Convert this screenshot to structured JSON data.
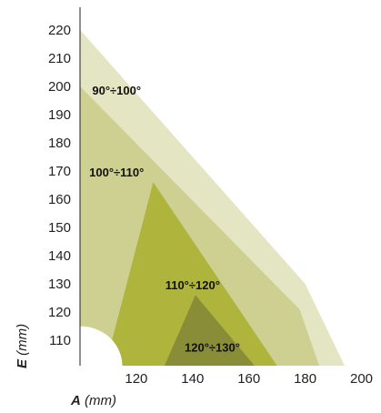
{
  "chart_data": {
    "type": "area",
    "title": "",
    "xlabel": {
      "symbol": "A",
      "unit": " (mm)"
    },
    "ylabel": {
      "symbol": "E",
      "unit": " (mm)"
    },
    "xlim": [
      100,
      205
    ],
    "ylim": [
      101,
      228
    ],
    "x_ticks": [
      120,
      140,
      160,
      180,
      200
    ],
    "y_ticks": [
      110,
      120,
      130,
      140,
      150,
      160,
      170,
      180,
      190,
      200,
      210,
      220
    ],
    "regions": [
      {
        "name": "90°÷100°",
        "color": "#e4e5c3",
        "points": [
          [
            100,
            220
          ],
          [
            180,
            130
          ],
          [
            194,
            101
          ],
          [
            100,
            101
          ]
        ],
        "label_at": [
          113,
          197
        ]
      },
      {
        "name": "100°÷110°",
        "color": "#cdd091",
        "points": [
          [
            100,
            200
          ],
          [
            178,
            121
          ],
          [
            185,
            101
          ],
          [
            100,
            101
          ]
        ],
        "label_at": [
          113,
          168
        ]
      },
      {
        "name": "110°÷120°",
        "color": "#aeb43c",
        "points": [
          [
            109,
            101
          ],
          [
            126,
            166
          ],
          [
            170,
            101
          ]
        ],
        "label_at": [
          140,
          128
        ]
      },
      {
        "name": "120°÷130°",
        "color": "#8a8d38",
        "points": [
          [
            130,
            101
          ],
          [
            141,
            126
          ],
          [
            162,
            101
          ]
        ],
        "label_at": [
          147,
          106
        ]
      }
    ],
    "excluded_corner": {
      "radius_x": 15,
      "radius_y": 14
    }
  }
}
